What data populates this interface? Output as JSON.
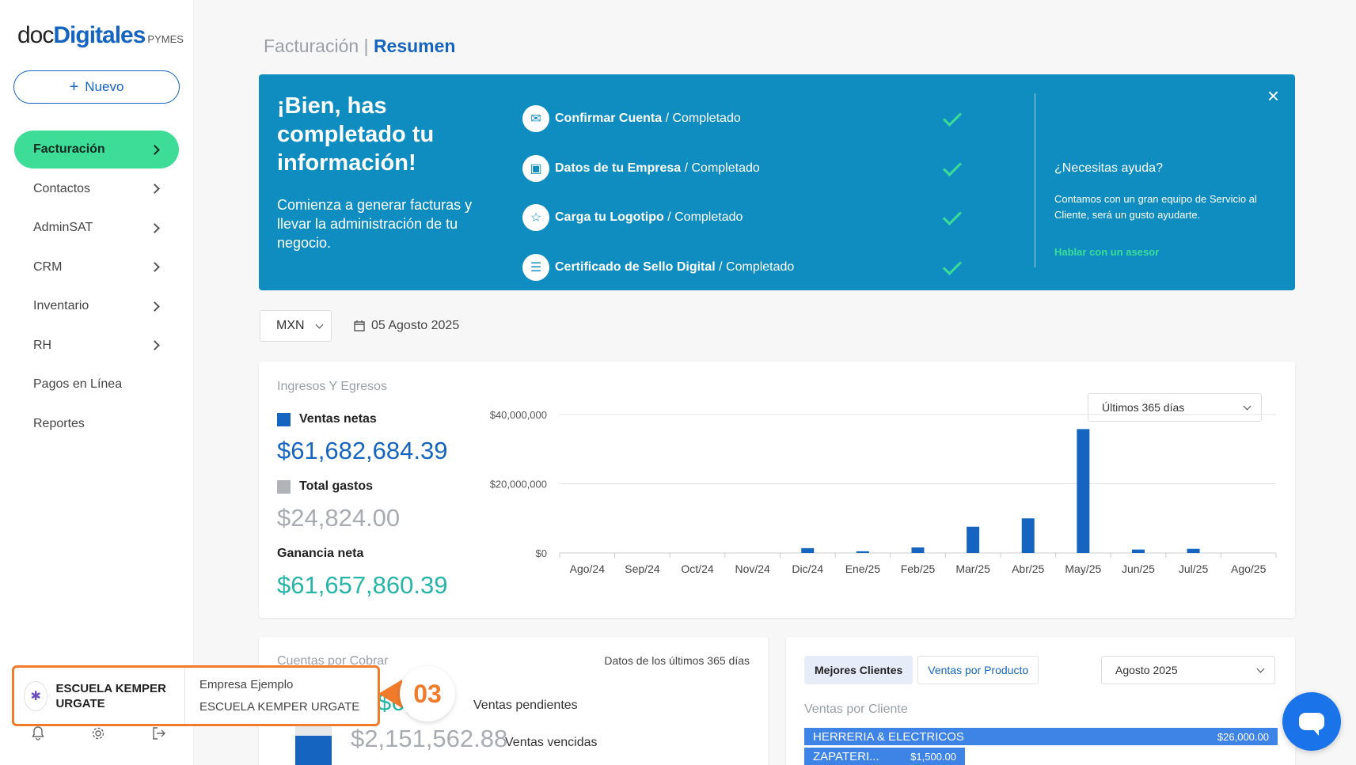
{
  "app": {
    "logo_doc": "doc",
    "logo_dig": "Digitales",
    "logo_pymes": "PYMES",
    "new_button": "Nuevo"
  },
  "sidebar": {
    "items": [
      {
        "label": "Facturación",
        "chevron": true,
        "active": true
      },
      {
        "label": "Contactos",
        "chevron": true
      },
      {
        "label": "AdminSAT",
        "chevron": true
      },
      {
        "label": "CRM",
        "chevron": true
      },
      {
        "label": "Inventario",
        "chevron": true
      },
      {
        "label": "RH",
        "chevron": true
      },
      {
        "label": "Pagos en Línea",
        "chevron": false
      },
      {
        "label": "Reportes",
        "chevron": false
      }
    ],
    "company": {
      "name": "ESCUELA KEMPER URGATE",
      "options": [
        "Empresa Ejemplo",
        "ESCUELA KEMPER URGATE"
      ]
    },
    "step_badge": "03"
  },
  "header": {
    "section": "Facturación",
    "separator": " | ",
    "page": "Resumen"
  },
  "banner": {
    "title": "¡Bien, has completado tu información!",
    "subtitle": "Comienza a generar facturas y llevar la administración de tu negocio.",
    "steps": [
      {
        "label": "Confirmar Cuenta",
        "status": "Completado",
        "icon": "envelope-icon"
      },
      {
        "label": "Datos de tu Empresa",
        "status": "Completado",
        "icon": "briefcase-icon"
      },
      {
        "label": "Carga tu Logotipo",
        "status": "Completado",
        "icon": "star-icon"
      },
      {
        "label": "Certificado de Sello Digital",
        "status": "Completado",
        "icon": "certificate-icon"
      }
    ],
    "help_title": "¿Necesitas ayuda?",
    "help_text": "Contamos con un gran equipo de Servicio al Cliente, será un gusto ayudarte.",
    "help_link": "Hablar con un asesor"
  },
  "filters": {
    "currency": "MXN",
    "date": "05 Agosto 2025"
  },
  "ingresos": {
    "title": "Ingresos Y Egresos",
    "period": "Últimos 365 días",
    "ventas_label": "Ventas netas",
    "ventas_value": "$61,682,684.39",
    "gastos_label": "Total gastos",
    "gastos_value": "$24,824.00",
    "ganancia_label": "Ganancia neta",
    "ganancia_value": "$61,657,860.39"
  },
  "chart_data": {
    "type": "bar",
    "categories": [
      "Ago/24",
      "Sep/24",
      "Oct/24",
      "Nov/24",
      "Dic/24",
      "Ene/25",
      "Feb/25",
      "Mar/25",
      "Abr/25",
      "May/25",
      "Jun/25",
      "Jul/25",
      "Ago/25"
    ],
    "series": [
      {
        "name": "Ventas netas",
        "values": [
          0,
          0,
          0,
          0,
          1400000,
          500000,
          1600000,
          7600000,
          10000000,
          35800000,
          1000000,
          1200000,
          0
        ]
      }
    ],
    "yticks": [
      "$0",
      "$20,000,000",
      "$40,000,000"
    ],
    "ylim": [
      0,
      40000000
    ],
    "color": "#1565c0",
    "grid": true
  },
  "cuentas": {
    "title": "Cuentas por Cobrar",
    "note": "Datos de los últimos 365 días",
    "pendientes_value": "$6,0...",
    "pendientes_label": "Ventas pendientes",
    "vencidas_value": "$2,151,562.88",
    "vencidas_label": "Ventas vencidas"
  },
  "clientes": {
    "tabs": [
      "Mejores Clientes",
      "Ventas por Producto"
    ],
    "month": "Agosto 2025",
    "subtitle": "Ventas por Cliente",
    "rows": [
      {
        "name": "HERRERIA & ELECTRICOS",
        "amount": "$26,000.00",
        "share": 1
      },
      {
        "name": "ZAPATERI...",
        "amount": "$1,500.00",
        "share": 0.34
      }
    ]
  }
}
